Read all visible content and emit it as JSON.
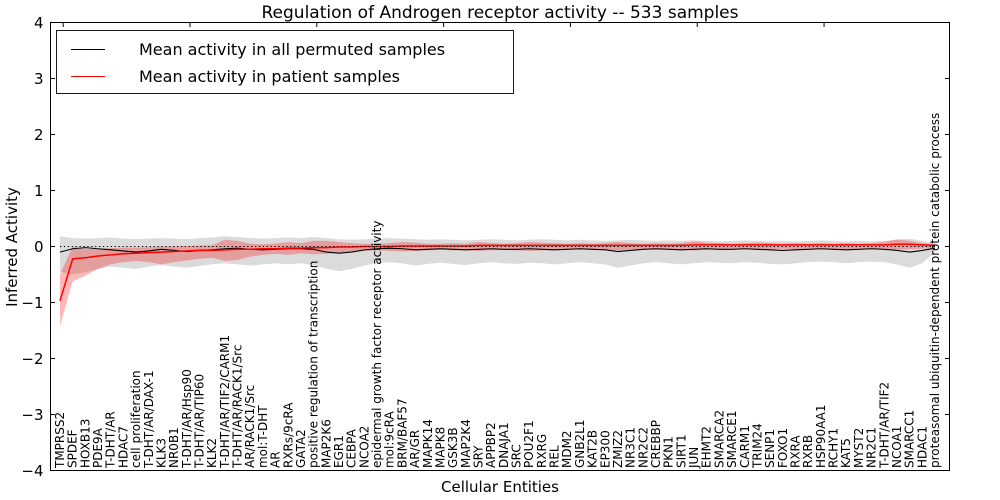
{
  "title": "Regulation of Androgen receptor activity -- 533 samples",
  "legend": {
    "items": [
      {
        "label": "Mean activity in all permuted samples",
        "color": "#000000"
      },
      {
        "label": "Mean activity in patient samples",
        "color": "#ff0000"
      }
    ]
  },
  "colors": {
    "permuted_line": "#000000",
    "patient_line": "#ff0000",
    "permuted_band": "#999999",
    "patient_band": "#ff0000",
    "zero_line": "#000000",
    "axis": "#000000"
  },
  "chart_data": {
    "type": "line",
    "title": "Regulation of Androgen receptor activity -- 533 samples",
    "xlabel": "Cellular Entities",
    "ylabel": "Inferred Activity",
    "ylim": [
      -4,
      4
    ],
    "yticks": [
      4,
      3,
      2,
      1,
      0,
      -1,
      -2,
      -3,
      -4
    ],
    "top_tick_positions": [
      0,
      10,
      20,
      30,
      40,
      50,
      60
    ],
    "grid": false,
    "legend_position": "upper left",
    "zero_reference_line": "dotted",
    "categories": [
      "TMPRSS2",
      "SPDEF",
      "HOXB13",
      "PDE9A",
      "T-DHT/AR",
      "HDAC7",
      "cell proliferation",
      "T-DHT/AR/DAX-1",
      "KLK3",
      "NR0B1",
      "T-DHT/AR/Hsp90",
      "T-DHT/AR/TIP60",
      "KLK2",
      "T-DHT/AR/TIF2/CARM1",
      "T-DHT/AR/RACK1/Src",
      "AR/RACK1/Src",
      "mol:T-DHT",
      "AR",
      "RXRs/9cRA",
      "GATA2",
      "positive regulation of transcription",
      "MAP2K6",
      "EGR1",
      "CEBPA",
      "NCOA2",
      "epidermal growth factor receptor activity",
      "mol:9cRA",
      "BRM/BAF57",
      "AR/GR",
      "MAPK14",
      "MAPK8",
      "GSK3B",
      "MAP2K4",
      "SRY",
      "APPBP2",
      "DNAJA1",
      "SRC",
      "POU2F1",
      "RXRG",
      "REL",
      "MDM2",
      "GNB2L1",
      "KAT2B",
      "EP300",
      "ZMIZ2",
      "NR3C1",
      "NR2C2",
      "CREBBP",
      "PKN1",
      "SIRT1",
      "JUN",
      "EHMT2",
      "SMARCA2",
      "SMARCE1",
      "CARM1",
      "TRIM24",
      "SENP1",
      "FOXO1",
      "RXRA",
      "RXRB",
      "HSP90AA1",
      "RCHY1",
      "KAT5",
      "MYST2",
      "NR2C1",
      "T-DHT/AR/TIF2",
      "NCOA1",
      "SMARCC1",
      "HDAC1",
      "proteasomal ubiquitin-dependent protein catabolic process"
    ],
    "series": [
      {
        "name": "Mean activity in all permuted samples",
        "role": "permuted_mean",
        "values": [
          -0.1,
          -0.04,
          -0.02,
          -0.04,
          -0.06,
          -0.08,
          -0.1,
          -0.08,
          -0.05,
          -0.07,
          -0.09,
          -0.07,
          -0.06,
          -0.04,
          -0.03,
          -0.05,
          -0.06,
          -0.05,
          -0.04,
          -0.04,
          -0.05,
          -0.1,
          -0.12,
          -0.1,
          -0.06,
          -0.04,
          -0.03,
          -0.04,
          -0.06,
          -0.05,
          -0.04,
          -0.05,
          -0.06,
          -0.05,
          -0.04,
          -0.05,
          -0.05,
          -0.04,
          -0.05,
          -0.06,
          -0.05,
          -0.04,
          -0.05,
          -0.06,
          -0.09,
          -0.07,
          -0.05,
          -0.04,
          -0.05,
          -0.06,
          -0.05,
          -0.04,
          -0.05,
          -0.05,
          -0.04,
          -0.05,
          -0.06,
          -0.07,
          -0.06,
          -0.05,
          -0.04,
          -0.05,
          -0.06,
          -0.05,
          -0.04,
          -0.05,
          -0.07,
          -0.1,
          -0.07,
          -0.03
        ]
      },
      {
        "name": "Permuted band upper",
        "role": "permuted_upper",
        "values": [
          0.18,
          0.15,
          0.14,
          0.15,
          0.16,
          0.14,
          0.13,
          0.14,
          0.15,
          0.14,
          0.13,
          0.15,
          0.16,
          0.18,
          0.17,
          0.15,
          0.14,
          0.15,
          0.16,
          0.15,
          0.17,
          0.15,
          0.13,
          0.12,
          0.13,
          0.14,
          0.15,
          0.14,
          0.13,
          0.12,
          0.13,
          0.12,
          0.11,
          0.12,
          0.13,
          0.12,
          0.11,
          0.12,
          0.13,
          0.12,
          0.11,
          0.12,
          0.11,
          0.1,
          0.11,
          0.12,
          0.11,
          0.1,
          0.11,
          0.1,
          0.11,
          0.1,
          0.09,
          0.1,
          0.11,
          0.1,
          0.09,
          0.1,
          0.09,
          0.1,
          0.11,
          0.1,
          0.09,
          0.1,
          0.09,
          0.1,
          0.12,
          0.14,
          0.1,
          0.05
        ]
      },
      {
        "name": "Permuted band lower",
        "role": "permuted_lower",
        "values": [
          -0.45,
          -0.5,
          -0.46,
          -0.4,
          -0.36,
          -0.38,
          -0.4,
          -0.36,
          -0.33,
          -0.36,
          -0.38,
          -0.35,
          -0.32,
          -0.3,
          -0.32,
          -0.34,
          -0.32,
          -0.3,
          -0.32,
          -0.3,
          -0.33,
          -0.4,
          -0.44,
          -0.4,
          -0.34,
          -0.3,
          -0.28,
          -0.3,
          -0.34,
          -0.31,
          -0.29,
          -0.31,
          -0.33,
          -0.3,
          -0.28,
          -0.3,
          -0.31,
          -0.29,
          -0.3,
          -0.32,
          -0.3,
          -0.28,
          -0.3,
          -0.32,
          -0.38,
          -0.34,
          -0.3,
          -0.28,
          -0.3,
          -0.32,
          -0.3,
          -0.28,
          -0.29,
          -0.3,
          -0.28,
          -0.29,
          -0.31,
          -0.32,
          -0.3,
          -0.28,
          -0.27,
          -0.28,
          -0.3,
          -0.28,
          -0.27,
          -0.28,
          -0.32,
          -0.38,
          -0.3,
          -0.1
        ]
      },
      {
        "name": "Mean activity in patient samples",
        "role": "patient_mean",
        "values": [
          -0.97,
          -0.22,
          -0.2,
          -0.17,
          -0.15,
          -0.13,
          -0.12,
          -0.11,
          -0.1,
          -0.09,
          -0.08,
          -0.07,
          -0.07,
          -0.06,
          -0.05,
          -0.05,
          -0.04,
          -0.04,
          -0.03,
          -0.03,
          -0.02,
          -0.02,
          -0.01,
          -0.01,
          0.0,
          0.0,
          0.0,
          0.01,
          0.01,
          0.01,
          0.01,
          0.01,
          0.01,
          0.02,
          0.02,
          0.02,
          0.02,
          0.02,
          0.02,
          0.02,
          0.02,
          0.02,
          0.02,
          0.02,
          0.02,
          0.02,
          0.02,
          0.02,
          0.02,
          0.02,
          0.03,
          0.03,
          0.03,
          0.03,
          0.03,
          0.03,
          0.03,
          0.03,
          0.03,
          0.03,
          0.03,
          0.03,
          0.03,
          0.03,
          0.03,
          0.03,
          0.04,
          0.04,
          0.03,
          0.02
        ]
      },
      {
        "name": "Patient band upper",
        "role": "patient_upper",
        "values": [
          -0.5,
          0.0,
          -0.05,
          -0.04,
          -0.03,
          -0.02,
          -0.02,
          -0.01,
          0.0,
          0.0,
          0.01,
          0.02,
          0.02,
          0.12,
          0.1,
          0.05,
          0.04,
          0.05,
          0.08,
          0.06,
          0.1,
          0.1,
          0.08,
          0.06,
          0.05,
          0.05,
          0.06,
          0.08,
          0.07,
          0.05,
          0.05,
          0.06,
          0.05,
          0.08,
          0.06,
          0.05,
          0.06,
          0.08,
          0.07,
          0.06,
          0.05,
          0.06,
          0.05,
          0.06,
          0.08,
          0.06,
          0.05,
          0.06,
          0.05,
          0.06,
          0.09,
          0.07,
          0.06,
          0.05,
          0.06,
          0.07,
          0.06,
          0.05,
          0.06,
          0.05,
          0.06,
          0.05,
          0.06,
          0.05,
          0.06,
          0.08,
          0.13,
          0.1,
          0.06,
          0.04
        ]
      },
      {
        "name": "Patient band lower",
        "role": "patient_lower",
        "values": [
          -1.42,
          -0.62,
          -0.52,
          -0.4,
          -0.32,
          -0.28,
          -0.26,
          -0.28,
          -0.32,
          -0.28,
          -0.25,
          -0.22,
          -0.2,
          -0.26,
          -0.24,
          -0.18,
          -0.15,
          -0.13,
          -0.15,
          -0.12,
          -0.14,
          -0.13,
          -0.11,
          -0.1,
          -0.08,
          -0.07,
          -0.08,
          -0.09,
          -0.08,
          -0.07,
          -0.06,
          -0.07,
          -0.06,
          -0.08,
          -0.07,
          -0.06,
          -0.07,
          -0.08,
          -0.07,
          -0.06,
          -0.05,
          -0.06,
          -0.05,
          -0.06,
          -0.07,
          -0.06,
          -0.05,
          -0.06,
          -0.05,
          -0.06,
          -0.07,
          -0.06,
          -0.05,
          -0.04,
          -0.05,
          -0.06,
          -0.05,
          -0.04,
          -0.05,
          -0.04,
          -0.05,
          -0.04,
          -0.05,
          -0.04,
          -0.05,
          -0.04,
          -0.06,
          -0.05,
          -0.04,
          -0.03
        ]
      }
    ]
  }
}
